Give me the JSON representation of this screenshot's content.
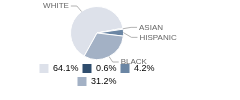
{
  "chart_data": {
    "type": "pie",
    "categories": [
      "WHITE",
      "ASIAN",
      "HISPANIC",
      "BLACK"
    ],
    "values": [
      64.1,
      0.6,
      4.2,
      31.2
    ],
    "value_labels": [
      "64.1%",
      "0.6%",
      "4.2%",
      "31.2%"
    ],
    "colors": [
      "#dde1ea",
      "#2f4d6d",
      "#6b86a4",
      "#a3b1c5"
    ],
    "legend": "bottom"
  }
}
